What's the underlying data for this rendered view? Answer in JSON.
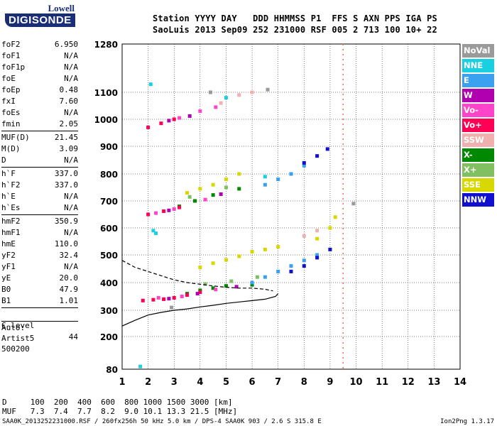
{
  "logo": {
    "line1": "Lowell",
    "line2": "DIGISONDE"
  },
  "header": {
    "line1": "Station YYYY DAY   DDD HHMMSS P1  FFS S AXN PPS IGA PS",
    "line2": "SaoLuis 2013 Sep09 252 231000 RSF 005 2 713 100 10+ 22"
  },
  "params": {
    "group1": [
      {
        "key": "foF2",
        "val": "6.950"
      },
      {
        "key": "foF1",
        "val": "N/A"
      },
      {
        "key": "foF1p",
        "val": "N/A"
      },
      {
        "key": "foE",
        "val": "N/A"
      },
      {
        "key": "foEp",
        "val": "0.48"
      },
      {
        "key": "fxI",
        "val": "7.60"
      },
      {
        "key": "foEs",
        "val": "N/A"
      },
      {
        "key": "fmin",
        "val": "2.05"
      }
    ],
    "group2": [
      {
        "key": "MUF(D)",
        "val": "21.45"
      },
      {
        "key": "M(D)",
        "val": "3.09"
      },
      {
        "key": "D",
        "val": "N/A"
      }
    ],
    "group3": [
      {
        "key": "h`F",
        "val": "337.0"
      },
      {
        "key": "h`F2",
        "val": "337.0"
      },
      {
        "key": "h`E",
        "val": "N/A"
      },
      {
        "key": "h`Es",
        "val": "N/A"
      }
    ],
    "group4": [
      {
        "key": "hmF2",
        "val": "350.9"
      },
      {
        "key": "hmF1",
        "val": "N/A"
      },
      {
        "key": "hmE",
        "val": "110.0"
      },
      {
        "key": "yF2",
        "val": "32.4"
      },
      {
        "key": "yF1",
        "val": "N/A"
      },
      {
        "key": "yE",
        "val": "20.0"
      },
      {
        "key": "B0",
        "val": "47.9"
      },
      {
        "key": "B1",
        "val": "1.01"
      }
    ],
    "clevel": {
      "key": "C-level",
      "val": "44"
    },
    "auto": [
      "Auto:",
      "Artist5",
      "500200"
    ]
  },
  "legend": [
    {
      "label": "NoVal",
      "color": "#9a9a9a"
    },
    {
      "label": "NNE",
      "color": "#1ad0e0"
    },
    {
      "label": "E",
      "color": "#3aa0f0"
    },
    {
      "label": "W",
      "color": "#b000b0"
    },
    {
      "label": "Vo-",
      "color": "#ff44cc"
    },
    {
      "label": "Vo+",
      "color": "#ff0055"
    },
    {
      "label": "SSW",
      "color": "#f0b0b0"
    },
    {
      "label": "X-",
      "color": "#008800"
    },
    {
      "label": "X+",
      "color": "#80c060"
    },
    {
      "label": "SSE",
      "color": "#d8d800"
    },
    {
      "label": "NNW",
      "color": "#1010d0"
    }
  ],
  "footer": {
    "d_row": "D     100  200  400  600  800 1000 1500 3000 [km]",
    "muf_row": "MUF   7.3  7.4  7.7  8.2  9.0 10.1 13.3 21.5 [MHz]",
    "file_line": "SAA0K_2013252231000.RSF / 260fx256h 50 kHz 5.0 km / DPS-4 SAA0K 903 / 2.6 S 315.8 E",
    "version": "Ion2Png 1.3.17"
  },
  "chart_data": {
    "type": "scatter",
    "xlim": [
      1,
      14
    ],
    "ylim": [
      80,
      1280
    ],
    "y_scale": "piecewise (tick-labelled)",
    "x_ticks": [
      1,
      2,
      3,
      4,
      5,
      6,
      7,
      8,
      9,
      10,
      11,
      12,
      13,
      14
    ],
    "y_ticks": [
      80,
      200,
      300,
      400,
      500,
      600,
      700,
      800,
      900,
      1000,
      1100,
      1280
    ],
    "marker_line_x": 9.5,
    "series": [
      {
        "name": "SSE",
        "color": "#d8d800",
        "points": [
          [
            4.0,
            455
          ],
          [
            4.5,
            470
          ],
          [
            5.0,
            482
          ],
          [
            5.5,
            495
          ],
          [
            6.0,
            512
          ],
          [
            6.5,
            520
          ],
          [
            7.0,
            530
          ],
          [
            3.5,
            730
          ],
          [
            4.0,
            745
          ],
          [
            4.5,
            760
          ],
          [
            5.0,
            780
          ],
          [
            5.5,
            800
          ],
          [
            8.5,
            560
          ],
          [
            9.0,
            600
          ],
          [
            9.2,
            640
          ]
        ]
      },
      {
        "name": "X-",
        "color": "#008800",
        "points": [
          [
            3.5,
            360
          ],
          [
            4.0,
            372
          ],
          [
            4.5,
            380
          ],
          [
            5.0,
            388
          ],
          [
            6.0,
            392
          ],
          [
            3.2,
            680
          ],
          [
            3.8,
            700
          ],
          [
            4.5,
            722
          ],
          [
            5.5,
            745
          ]
        ]
      },
      {
        "name": "Vo+",
        "color": "#ff0055",
        "points": [
          [
            1.8,
            335
          ],
          [
            2.2,
            338
          ],
          [
            2.6,
            340
          ],
          [
            3.0,
            345
          ],
          [
            3.5,
            355
          ],
          [
            4.0,
            365
          ],
          [
            2.0,
            650
          ],
          [
            2.6,
            662
          ],
          [
            3.2,
            676
          ],
          [
            2.0,
            970
          ],
          [
            2.5,
            985
          ],
          [
            3.0,
            1000
          ]
        ]
      },
      {
        "name": "Vo-",
        "color": "#ff44cc",
        "points": [
          [
            2.4,
            345
          ],
          [
            3.3,
            350
          ],
          [
            4.6,
            375
          ],
          [
            2.3,
            655
          ],
          [
            3.0,
            670
          ],
          [
            4.2,
            705
          ],
          [
            3.2,
            1005
          ],
          [
            4.0,
            1030
          ],
          [
            4.6,
            1045
          ]
        ]
      },
      {
        "name": "W",
        "color": "#b000b0",
        "points": [
          [
            2.8,
            342
          ],
          [
            3.9,
            360
          ],
          [
            5.4,
            385
          ],
          [
            2.8,
            665
          ],
          [
            4.8,
            725
          ],
          [
            2.8,
            995
          ],
          [
            3.6,
            1012
          ]
        ]
      },
      {
        "name": "E",
        "color": "#3aa0f0",
        "points": [
          [
            6.0,
            400
          ],
          [
            6.5,
            420
          ],
          [
            7.0,
            440
          ],
          [
            7.5,
            460
          ],
          [
            8.0,
            480
          ],
          [
            8.5,
            500
          ],
          [
            6.5,
            760
          ],
          [
            7.0,
            780
          ],
          [
            7.5,
            800
          ],
          [
            8.0,
            830
          ]
        ]
      },
      {
        "name": "NNW",
        "color": "#1010d0",
        "points": [
          [
            7.5,
            440
          ],
          [
            8.0,
            460
          ],
          [
            8.5,
            490
          ],
          [
            9.0,
            520
          ],
          [
            8.0,
            840
          ],
          [
            8.5,
            865
          ],
          [
            8.9,
            890
          ]
        ]
      },
      {
        "name": "NNE",
        "color": "#1ad0e0",
        "points": [
          [
            1.7,
            90
          ],
          [
            2.1,
            1130
          ],
          [
            2.2,
            590
          ],
          [
            2.3,
            580
          ],
          [
            6.5,
            790
          ],
          [
            5.0,
            1080
          ]
        ]
      },
      {
        "name": "SSW",
        "color": "#f0b0b0",
        "points": [
          [
            4.8,
            1060
          ],
          [
            5.5,
            1090
          ],
          [
            6.0,
            1100
          ],
          [
            8.0,
            570
          ],
          [
            8.5,
            590
          ]
        ]
      },
      {
        "name": "X+",
        "color": "#80c060",
        "points": [
          [
            4.2,
            395
          ],
          [
            5.2,
            405
          ],
          [
            6.2,
            420
          ],
          [
            3.6,
            715
          ],
          [
            5.0,
            750
          ]
        ]
      },
      {
        "name": "NoVal",
        "color": "#9a9a9a",
        "points": [
          [
            4.4,
            1100
          ],
          [
            6.6,
            1110
          ],
          [
            9.9,
            690
          ],
          [
            2.9,
            310
          ]
        ]
      }
    ],
    "curves": [
      {
        "style": "solid",
        "points": [
          [
            1.0,
            240
          ],
          [
            1.5,
            262
          ],
          [
            2.0,
            282
          ],
          [
            2.5,
            292
          ],
          [
            3.0,
            300
          ],
          [
            3.5,
            305
          ],
          [
            4.0,
            312
          ],
          [
            4.5,
            318
          ],
          [
            5.0,
            325
          ],
          [
            5.5,
            330
          ],
          [
            6.0,
            335
          ],
          [
            6.5,
            340
          ],
          [
            6.9,
            350
          ],
          [
            7.0,
            360
          ]
        ]
      },
      {
        "style": "dashed",
        "points": [
          [
            1.0,
            480
          ],
          [
            1.5,
            455
          ],
          [
            2.0,
            440
          ],
          [
            2.5,
            425
          ],
          [
            3.0,
            410
          ],
          [
            3.5,
            400
          ],
          [
            4.0,
            394
          ],
          [
            4.5,
            388
          ],
          [
            5.0,
            383
          ],
          [
            5.5,
            380
          ],
          [
            6.0,
            380
          ],
          [
            6.5,
            376
          ],
          [
            6.8,
            370
          ]
        ]
      }
    ]
  }
}
